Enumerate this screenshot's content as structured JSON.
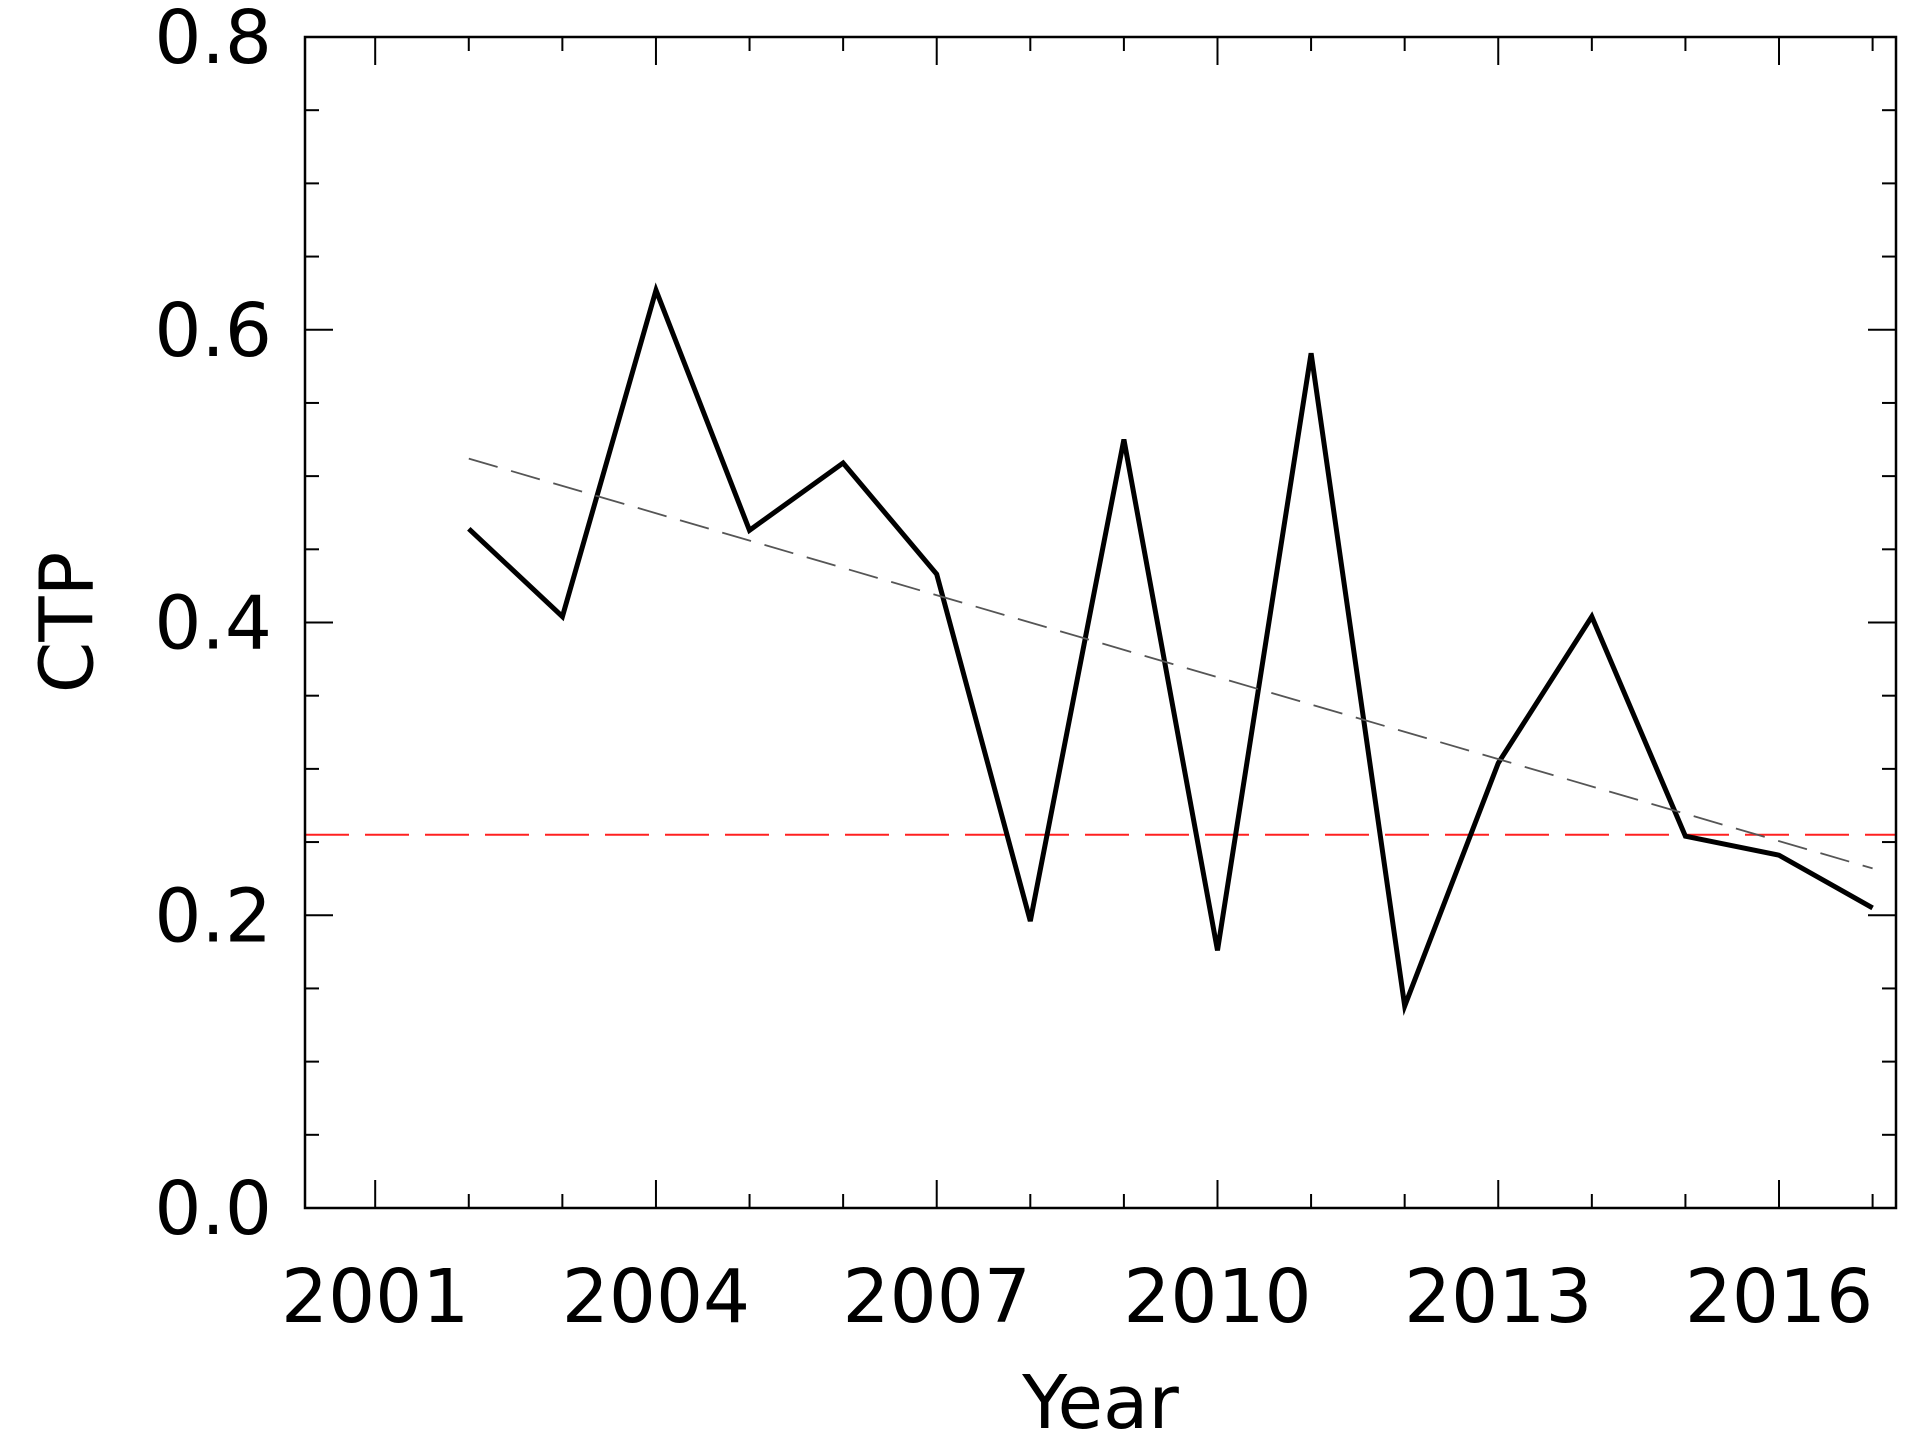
{
  "chart_data": {
    "type": "line",
    "xlabel": "Year",
    "ylabel": "CTP",
    "xlim": [
      2000.25,
      2017.25
    ],
    "ylim": [
      0.0,
      0.8
    ],
    "x_major_ticks": [
      2001,
      2004,
      2007,
      2010,
      2013,
      2016
    ],
    "x_tick_labels": [
      "2001",
      "2004",
      "2007",
      "2010",
      "2013",
      "2016"
    ],
    "x_minor_ticks": [
      2001,
      2002,
      2003,
      2004,
      2005,
      2006,
      2007,
      2008,
      2009,
      2010,
      2011,
      2012,
      2013,
      2014,
      2015,
      2016,
      2017
    ],
    "y_major_ticks": [
      0.0,
      0.2,
      0.4,
      0.6,
      0.8
    ],
    "y_tick_labels": [
      "0.0",
      "0.2",
      "0.4",
      "0.6",
      "0.8"
    ],
    "y_minor_ticks": [
      0.05,
      0.1,
      0.15,
      0.25,
      0.3,
      0.35,
      0.45,
      0.5,
      0.55,
      0.65,
      0.7,
      0.75
    ],
    "grid": false,
    "series": [
      {
        "style": "solid",
        "color": "#000000",
        "x": [
          2002,
          2003,
          2004,
          2005,
          2006,
          2007,
          2008,
          2009,
          2010,
          2011,
          2012,
          2013,
          2014,
          2015,
          2016,
          2017
        ],
        "y": [
          0.464,
          0.404,
          0.627,
          0.463,
          0.509,
          0.433,
          0.196,
          0.525,
          0.176,
          0.584,
          0.138,
          0.304,
          0.404,
          0.254,
          0.241,
          0.205
        ]
      },
      {
        "style": "dashed",
        "color": "#555555",
        "x": [
          2002,
          2017
        ],
        "y": [
          0.512,
          0.232
        ]
      }
    ],
    "reference_lines": [
      {
        "orientation": "horizontal",
        "y": 0.255,
        "color": "#ff2020",
        "style": "dashed"
      }
    ]
  }
}
